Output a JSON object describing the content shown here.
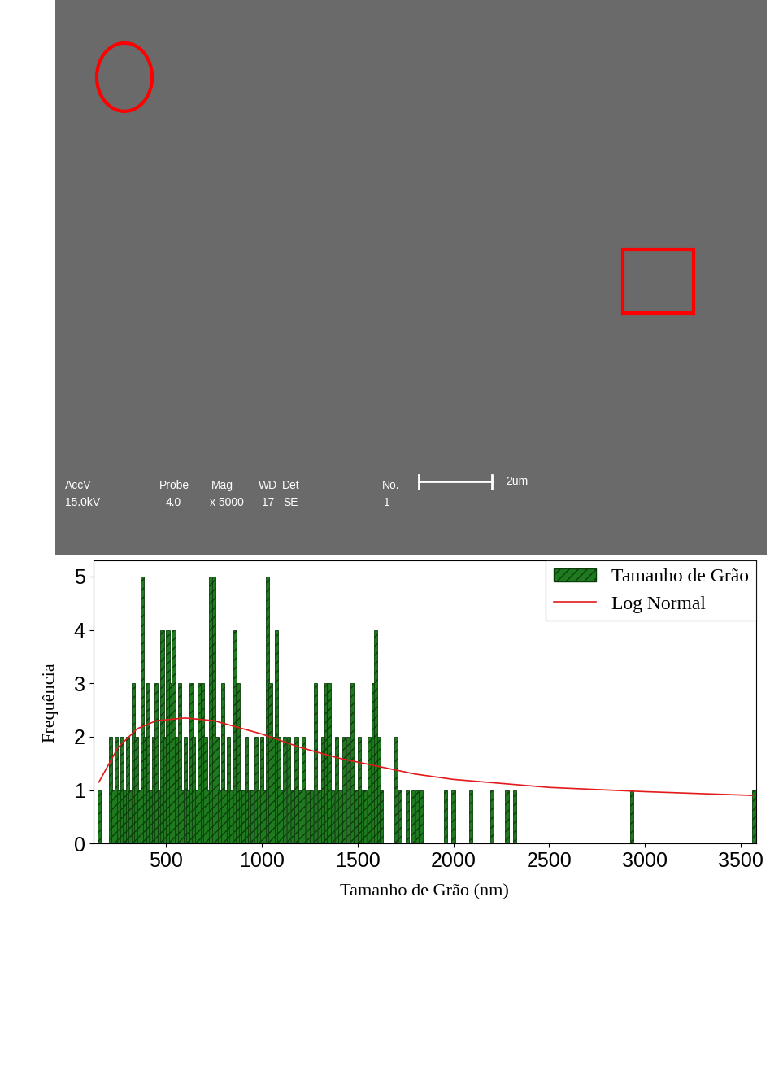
{
  "micrograph": {
    "labels": [
      "AccV",
      "Probe",
      "Mag",
      "WD",
      "Det",
      "No."
    ],
    "values": [
      "15.0kV",
      "4.0",
      "x 5000",
      "17",
      "SE",
      "1"
    ],
    "scale_bar": "2um"
  },
  "chart_data": {
    "type": "bar",
    "x_label": "Tamanho de Grão (nm)",
    "y_label": "Frequência",
    "legend": "upper right",
    "x": [
      150,
      210,
      225,
      240,
      255,
      270,
      285,
      300,
      315,
      330,
      345,
      360,
      375,
      390,
      405,
      420,
      435,
      450,
      465,
      480,
      495,
      510,
      525,
      540,
      555,
      570,
      585,
      600,
      615,
      630,
      645,
      660,
      675,
      690,
      705,
      720,
      735,
      750,
      765,
      780,
      795,
      810,
      825,
      840,
      860,
      875,
      890,
      905,
      920,
      935,
      950,
      970,
      985,
      1000,
      1015,
      1030,
      1045,
      1060,
      1075,
      1090,
      1105,
      1120,
      1140,
      1160,
      1180,
      1200,
      1215,
      1240,
      1260,
      1280,
      1300,
      1320,
      1335,
      1350,
      1370,
      1390,
      1410,
      1430,
      1450,
      1470,
      1490,
      1510,
      1525,
      1540,
      1560,
      1580,
      1595,
      1610,
      1625,
      1700,
      1720,
      1760,
      1790,
      1810,
      1830,
      1960,
      2000,
      2090,
      2200,
      2280,
      2320,
      2930,
      3570
    ],
    "series": [
      {
        "name": "Tamanho de Grão",
        "type": "bar",
        "color": "#1f7a1f",
        "values": [
          1,
          2,
          1,
          2,
          1,
          2,
          1,
          2,
          1,
          3,
          2,
          1,
          5,
          2,
          3,
          1,
          2,
          3,
          1,
          4,
          2,
          4,
          3,
          4,
          2,
          3,
          1,
          2,
          1,
          3,
          2,
          1,
          3,
          3,
          2,
          1,
          5,
          5,
          2,
          1,
          3,
          1,
          2,
          1,
          4,
          3,
          1,
          1,
          2,
          1,
          1,
          2,
          1,
          2,
          1,
          5,
          3,
          2,
          4,
          2,
          1,
          2,
          2,
          1,
          2,
          1,
          2,
          1,
          1,
          3,
          1,
          2,
          3,
          3,
          1,
          2,
          1,
          2,
          2,
          3,
          1,
          2,
          1,
          1,
          2,
          3,
          4,
          2,
          1,
          2,
          1,
          1,
          1,
          1,
          1,
          1,
          1,
          1,
          1,
          1,
          1,
          1,
          1
        ]
      },
      {
        "name": "Log Normal",
        "type": "line",
        "color": "#e31a1c",
        "x": [
          150,
          250,
          350,
          450,
          600,
          750,
          900,
          1000,
          1200,
          1400,
          1600,
          1800,
          2000,
          2500,
          3000,
          3560
        ],
        "values": [
          1.15,
          1.8,
          2.15,
          2.3,
          2.35,
          2.3,
          2.15,
          2.05,
          1.8,
          1.6,
          1.45,
          1.3,
          1.2,
          1.05,
          0.97,
          0.9
        ]
      }
    ],
    "xlim": [
      120,
      3580
    ],
    "xticks": [
      500,
      1000,
      1500,
      2000,
      2500,
      3000,
      3500
    ],
    "ylim": [
      0,
      5.3
    ],
    "yticks": [
      0,
      1,
      2,
      3,
      4,
      5
    ]
  }
}
